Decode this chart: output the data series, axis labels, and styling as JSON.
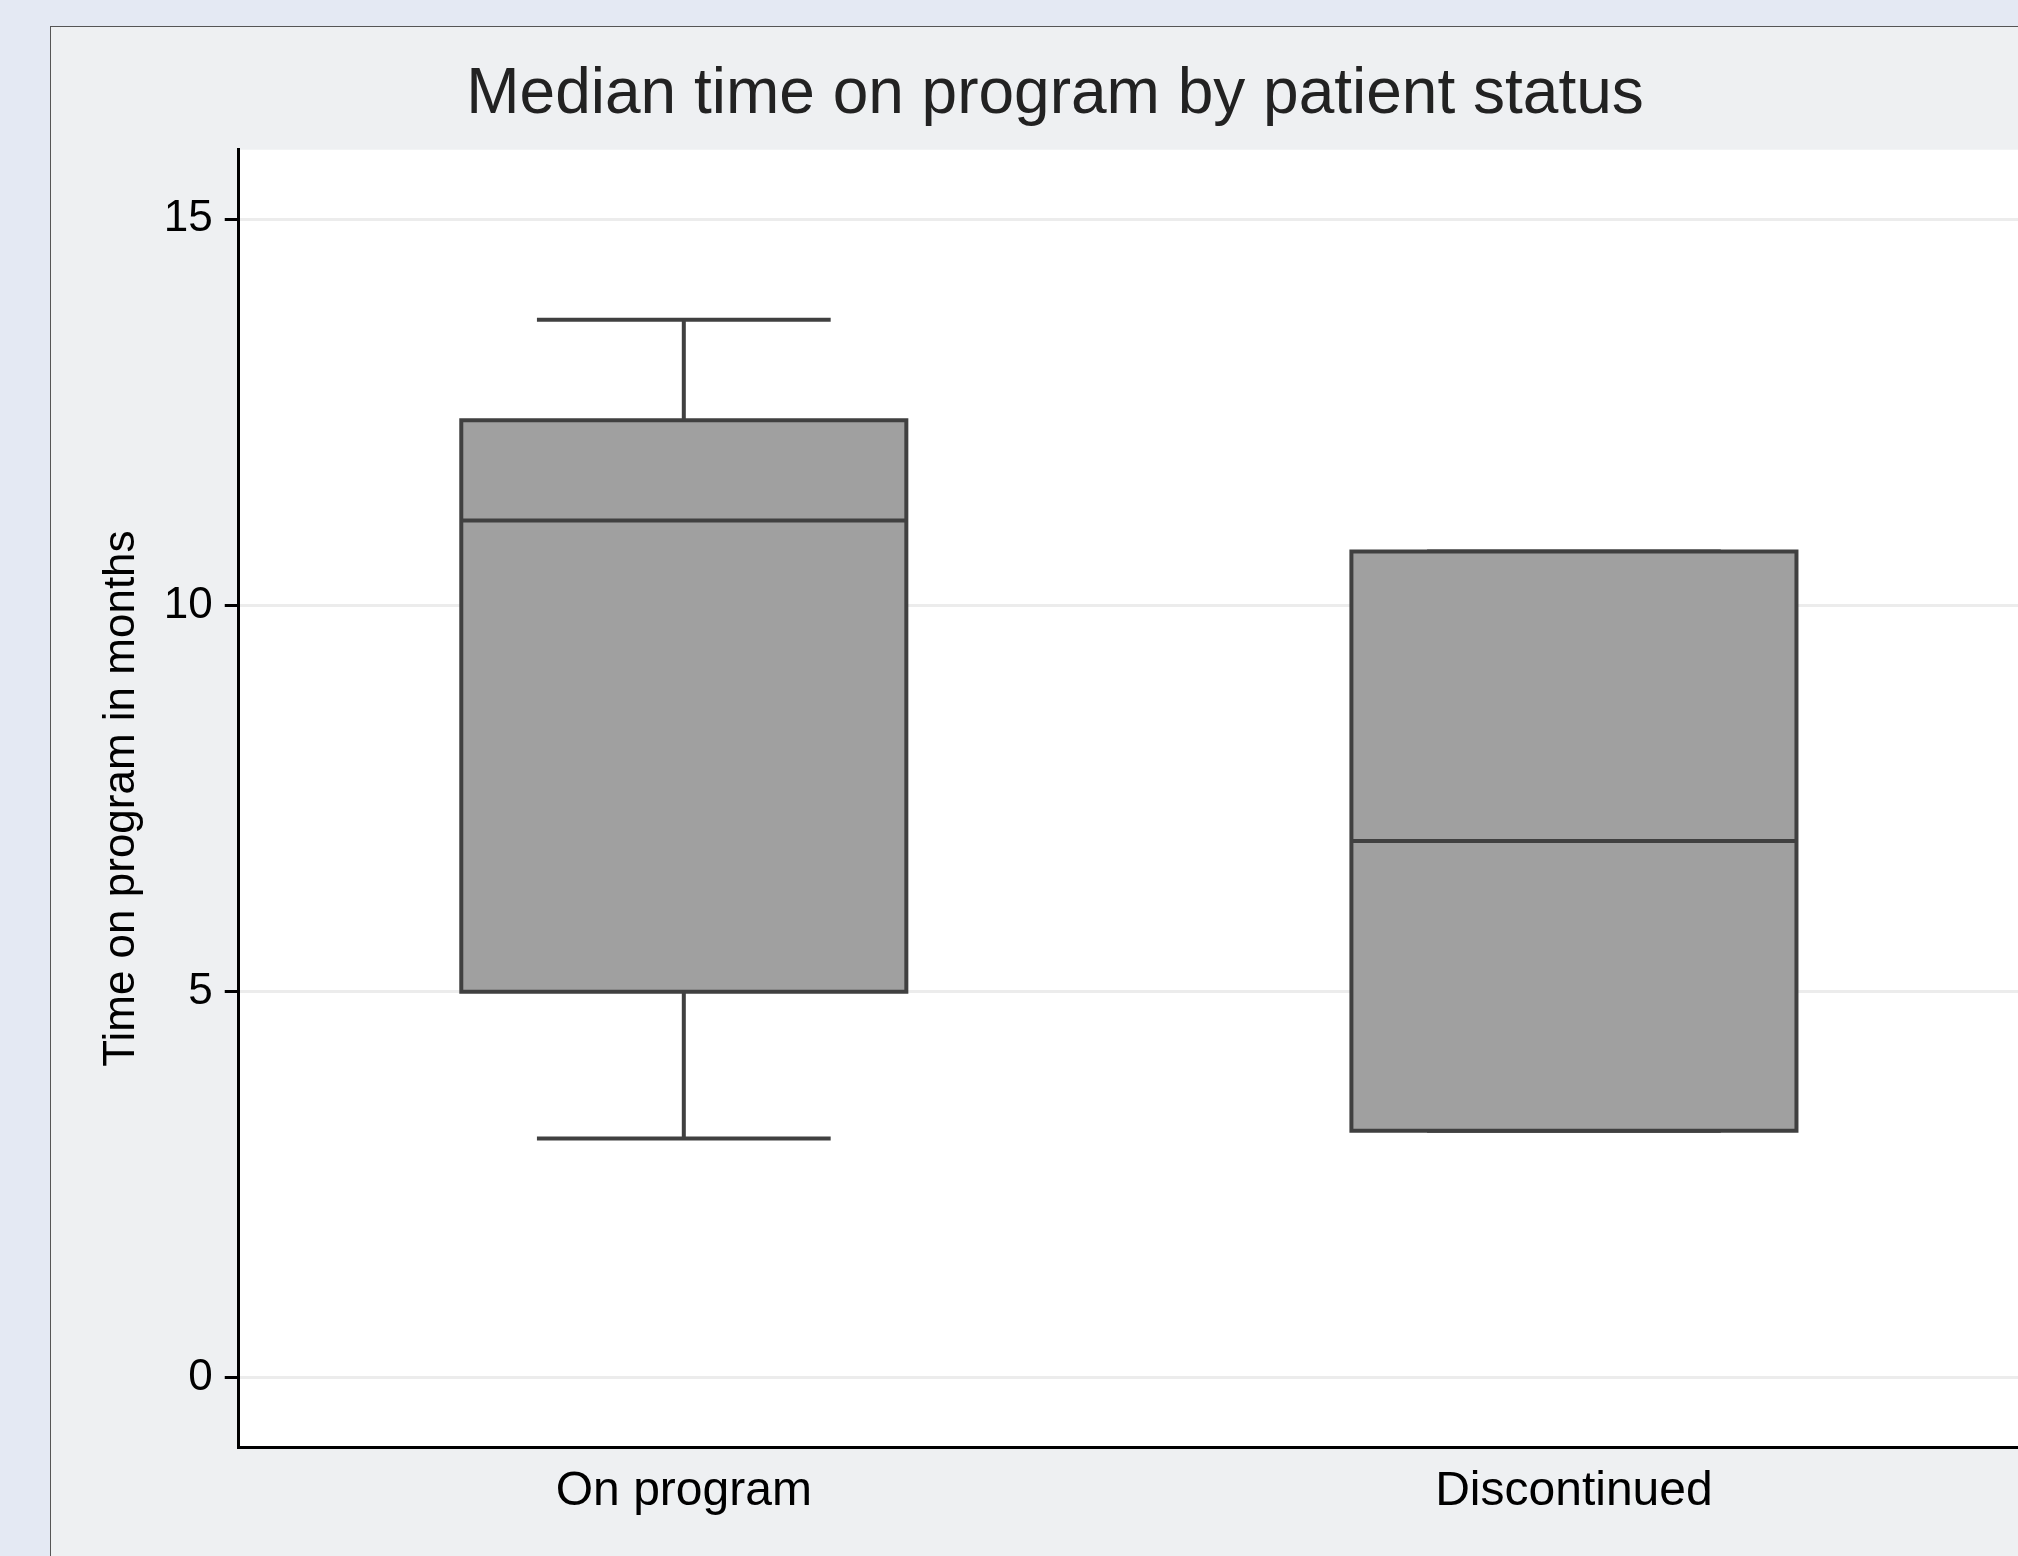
{
  "chart_data": {
    "type": "box",
    "title": "Median time on program by patient status",
    "ylabel": "Time on program in months",
    "categories": [
      "On program",
      "Discontinued"
    ],
    "boxes": [
      {
        "low": 3.1,
        "q1": 5.0,
        "median": 11.1,
        "q3": 12.4,
        "high": 13.7
      },
      {
        "low": 3.2,
        "q1": 3.2,
        "median": 6.95,
        "q3": 10.7,
        "high": 10.7
      }
    ],
    "color": "#a0a0a0",
    "ylim": [
      -0.9,
      15.9
    ],
    "yticks": [
      0,
      5,
      10,
      15
    ],
    "grid": "y",
    "legend": false
  }
}
